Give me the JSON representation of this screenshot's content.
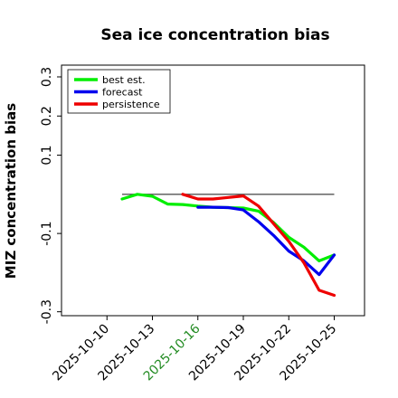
{
  "chart_data": {
    "type": "line",
    "title": "Sea ice concentration bias",
    "xlabel": "",
    "ylabel": "MIZ concentration bias",
    "ylim": [
      -0.31,
      0.33
    ],
    "xlim": [
      "2025-10-07",
      "2025-10-27"
    ],
    "x_ticks": [
      "2025-10-10",
      "2025-10-13",
      "2025-10-16",
      "2025-10-19",
      "2025-10-22",
      "2025-10-25"
    ],
    "x_tick_labels": [
      "2025-10-10",
      "2025-10-13",
      "2025-10-16",
      "2025-10-19",
      "2025-10-22",
      "2025-10-25"
    ],
    "highlight_tick": {
      "label": "2025-10-16",
      "color": "#228b22"
    },
    "y_ticks": [
      -0.3,
      -0.1,
      0.1,
      0.2,
      0.3
    ],
    "y_tick_labels": [
      "-0.3",
      "-0.1",
      "0.1",
      "0.2",
      "0.3"
    ],
    "zero_line": {
      "y": 0,
      "x_start": "2025-10-11",
      "x_end": "2025-10-25",
      "color": "#555555"
    },
    "legend_position": "upper-left",
    "grid": false,
    "series": [
      {
        "name": "best est.",
        "color": "#00ee00",
        "x": [
          "2025-10-11",
          "2025-10-12",
          "2025-10-13",
          "2025-10-14",
          "2025-10-15",
          "2025-10-16",
          "2025-10-17",
          "2025-10-18",
          "2025-10-19",
          "2025-10-20",
          "2025-10-21",
          "2025-10-22",
          "2025-10-23",
          "2025-10-24",
          "2025-10-25"
        ],
        "values": [
          -0.012,
          0.0,
          -0.005,
          -0.025,
          -0.026,
          -0.03,
          -0.033,
          -0.034,
          -0.035,
          -0.043,
          -0.072,
          -0.11,
          -0.135,
          -0.17,
          -0.155
        ]
      },
      {
        "name": "forecast",
        "color": "#0000ee",
        "x": [
          "2025-10-16",
          "2025-10-17",
          "2025-10-18",
          "2025-10-19",
          "2025-10-20",
          "2025-10-21",
          "2025-10-22",
          "2025-10-23",
          "2025-10-24",
          "2025-10-25"
        ],
        "values": [
          -0.033,
          -0.033,
          -0.034,
          -0.04,
          -0.07,
          -0.105,
          -0.145,
          -0.17,
          -0.205,
          -0.155
        ]
      },
      {
        "name": "persistence",
        "color": "#ee0000",
        "x": [
          "2025-10-15",
          "2025-10-16",
          "2025-10-17",
          "2025-10-18",
          "2025-10-19",
          "2025-10-20",
          "2025-10-21",
          "2025-10-22",
          "2025-10-23",
          "2025-10-24",
          "2025-10-25"
        ],
        "values": [
          0.0,
          -0.012,
          -0.012,
          -0.008,
          -0.004,
          -0.03,
          -0.075,
          -0.12,
          -0.175,
          -0.245,
          -0.258
        ]
      }
    ]
  }
}
